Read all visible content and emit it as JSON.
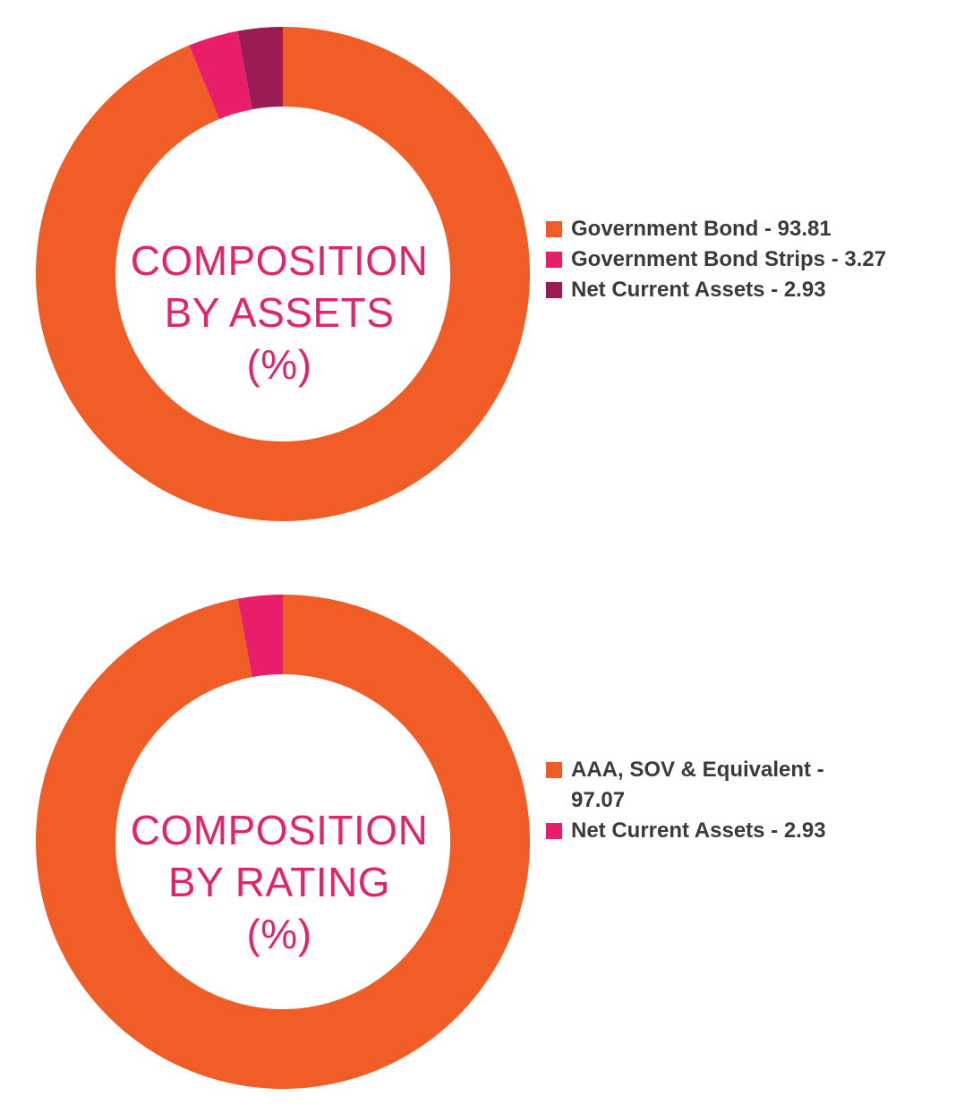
{
  "chart_data": [
    {
      "type": "pie",
      "title_lines": [
        "COMPOSITION",
        "BY ASSETS",
        "(%)"
      ],
      "legend_position": "right",
      "slices": [
        {
          "label": "Government Bond - 93.81",
          "value": 93.81,
          "color": "#f15d27"
        },
        {
          "label": "Government Bond Strips - 3.27",
          "value": 3.27,
          "color": "#e91e6b"
        },
        {
          "label": "Net Current Assets - 2.93",
          "value": 2.93,
          "color": "#9b1b54"
        }
      ]
    },
    {
      "type": "pie",
      "title_lines": [
        "COMPOSITION",
        "BY RATING",
        "(%)"
      ],
      "legend_position": "right",
      "slices": [
        {
          "label": "AAA, SOV & Equivalent - 97.07",
          "value": 97.07,
          "color": "#f15d27"
        },
        {
          "label": "Net Current Assets - 2.93",
          "value": 2.93,
          "color": "#e91e6b"
        }
      ]
    }
  ]
}
